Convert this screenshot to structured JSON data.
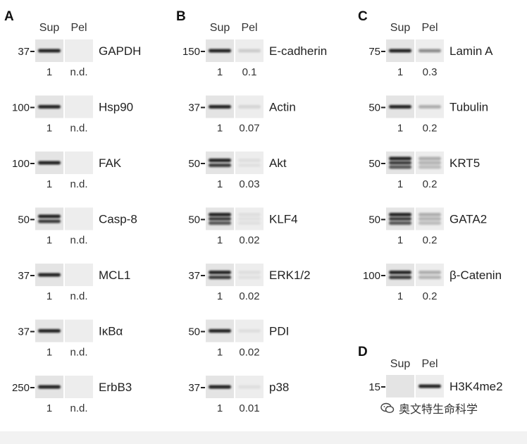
{
  "panels": [
    {
      "letter": "A",
      "headers": [
        "Sup",
        "Pel"
      ],
      "rows": [
        {
          "protein": "GAPDH",
          "marker": "37",
          "sup": "1",
          "pel": "n.d.",
          "bands": 1,
          "pel_level": 0
        },
        {
          "protein": "Hsp90",
          "marker": "100",
          "sup": "1",
          "pel": "n.d.",
          "bands": 1,
          "pel_level": 0
        },
        {
          "protein": "FAK",
          "marker": "100",
          "sup": "1",
          "pel": "n.d.",
          "bands": 1,
          "pel_level": 0
        },
        {
          "protein": "Casp-8",
          "marker": "50",
          "sup": "1",
          "pel": "n.d.",
          "bands": 2,
          "pel_level": 0
        },
        {
          "protein": "MCL1",
          "marker": "37",
          "sup": "1",
          "pel": "n.d.",
          "bands": 1,
          "pel_level": 0
        },
        {
          "protein": "IκBα",
          "marker": "37",
          "sup": "1",
          "pel": "n.d.",
          "bands": 1,
          "pel_level": 0
        },
        {
          "protein": "ErbB3",
          "marker": "250",
          "sup": "1",
          "pel": "n.d.",
          "bands": 1,
          "pel_level": 0
        }
      ]
    },
    {
      "letter": "B",
      "headers": [
        "Sup",
        "Pel"
      ],
      "rows": [
        {
          "protein": "E-cadherin",
          "marker": "150",
          "sup": "1",
          "pel": "0.1",
          "bands": 1,
          "pel_level": 0.1
        },
        {
          "protein": "Actin",
          "marker": "37",
          "sup": "1",
          "pel": "0.07",
          "bands": 1,
          "pel_level": 0.07
        },
        {
          "protein": "Akt",
          "marker": "50",
          "sup": "1",
          "pel": "0.03",
          "bands": 2,
          "pel_level": 0.03
        },
        {
          "protein": "KLF4",
          "marker": "50",
          "sup": "1",
          "pel": "0.02",
          "bands": 3,
          "pel_level": 0.02
        },
        {
          "protein": "ERK1/2",
          "marker": "37",
          "sup": "1",
          "pel": "0.02",
          "bands": 2,
          "pel_level": 0.02
        },
        {
          "protein": "PDI",
          "marker": "50",
          "sup": "1",
          "pel": "0.02",
          "bands": 1,
          "pel_level": 0.02
        },
        {
          "protein": "p38",
          "marker": "37",
          "sup": "1",
          "pel": "0.01",
          "bands": 1,
          "pel_level": 0.01
        }
      ]
    },
    {
      "letter": "C",
      "headers": [
        "Sup",
        "Pel"
      ],
      "rows": [
        {
          "protein": "Lamin A",
          "marker": "75",
          "sup": "1",
          "pel": "0.3",
          "bands": 1,
          "pel_level": 0.3
        },
        {
          "protein": "Tubulin",
          "marker": "50",
          "sup": "1",
          "pel": "0.2",
          "bands": 1,
          "pel_level": 0.2
        },
        {
          "protein": "KRT5",
          "marker": "50",
          "sup": "1",
          "pel": "0.2",
          "bands": 3,
          "pel_level": 0.2
        },
        {
          "protein": "GATA2",
          "marker": "50",
          "sup": "1",
          "pel": "0.2",
          "bands": 3,
          "pel_level": 0.2
        },
        {
          "protein": "β-Catenin",
          "marker": "100",
          "sup": "1",
          "pel": "0.2",
          "bands": 2,
          "pel_level": 0.2
        }
      ]
    },
    {
      "letter": "D",
      "headers": [
        "Sup",
        "Pel"
      ],
      "rows": [
        {
          "protein": "H3K4me2",
          "marker": "15",
          "sup": "",
          "pel": "",
          "bands": 1,
          "sup_level": 0,
          "pel_level": 1
        }
      ]
    }
  ],
  "watermark": {
    "text": "奥文特生命科学",
    "icon": "wechat-icon"
  }
}
